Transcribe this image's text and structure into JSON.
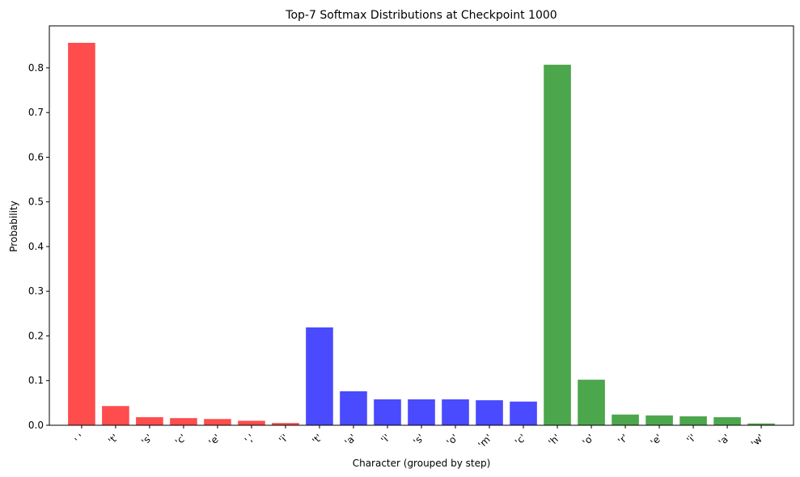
{
  "chart_data": {
    "type": "bar",
    "title": "Top-7 Softmax Distributions at Checkpoint 1000",
    "xlabel": "Character (grouped by step)",
    "ylabel": "Probability",
    "ylim": [
      0,
      0.894
    ],
    "yticks": [
      0.0,
      0.1,
      0.2,
      0.3,
      0.4,
      0.5,
      0.6,
      0.7,
      0.8
    ],
    "ytick_labels": [
      "0.0",
      "0.1",
      "0.2",
      "0.3",
      "0.4",
      "0.5",
      "0.6",
      "0.7",
      "0.8"
    ],
    "grid": false,
    "categories": [
      "' '",
      "'t'",
      "'s'",
      "'c'",
      "'e'",
      "','",
      "'i'",
      "'t'",
      "'a'",
      "'i'",
      "'s'",
      "'o'",
      "'m'",
      "'c'",
      "'h'",
      "'o'",
      "'r'",
      "'e'",
      "'i'",
      "'a'",
      "'w'"
    ],
    "values": [
      0.856,
      0.043,
      0.018,
      0.016,
      0.014,
      0.01,
      0.005,
      0.219,
      0.076,
      0.058,
      0.058,
      0.058,
      0.056,
      0.053,
      0.807,
      0.102,
      0.024,
      0.022,
      0.02,
      0.018,
      0.004
    ],
    "bar_colors": [
      "#ff4c4c",
      "#ff4c4c",
      "#ff4c4c",
      "#ff4c4c",
      "#ff4c4c",
      "#ff4c4c",
      "#ff4c4c",
      "#4a4aff",
      "#4a4aff",
      "#4a4aff",
      "#4a4aff",
      "#4a4aff",
      "#4a4aff",
      "#4a4aff",
      "#4ca64c",
      "#4ca64c",
      "#4ca64c",
      "#4ca64c",
      "#4ca64c",
      "#4ca64c",
      "#4ca64c"
    ]
  }
}
